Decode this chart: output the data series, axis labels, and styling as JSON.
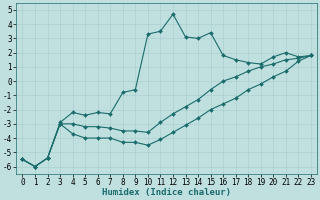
{
  "xlabel": "Humidex (Indice chaleur)",
  "bg_color": "#c0e0e0",
  "line_color": "#1a6b6b",
  "grid_color": "#a8cccc",
  "xlim": [
    -0.5,
    23.5
  ],
  "ylim": [
    -6.5,
    5.5
  ],
  "xticks": [
    0,
    1,
    2,
    3,
    4,
    5,
    6,
    7,
    8,
    9,
    10,
    11,
    12,
    13,
    14,
    15,
    16,
    17,
    18,
    19,
    20,
    21,
    22,
    23
  ],
  "yticks": [
    -6,
    -5,
    -4,
    -3,
    -2,
    -1,
    0,
    1,
    2,
    3,
    4,
    5
  ],
  "line1_x": [
    0,
    1,
    2,
    3,
    4,
    5,
    6,
    7,
    8,
    9,
    10,
    11,
    12,
    13,
    14,
    15,
    16,
    17,
    18,
    19,
    20,
    21,
    22,
    23
  ],
  "line1_y": [
    -5.5,
    -6.0,
    -5.4,
    -2.9,
    -2.2,
    -2.4,
    -2.2,
    -2.3,
    -0.8,
    -0.6,
    3.3,
    3.5,
    4.7,
    3.1,
    3.0,
    3.4,
    1.8,
    1.5,
    1.3,
    1.2,
    1.7,
    2.0,
    1.7,
    1.8
  ],
  "line2_x": [
    0,
    1,
    2,
    3,
    4,
    5,
    6,
    7,
    8,
    9,
    10,
    11,
    12,
    13,
    14,
    15,
    16,
    17,
    18,
    19,
    20,
    21,
    22,
    23
  ],
  "line2_y": [
    -5.5,
    -6.0,
    -5.4,
    -3.0,
    -3.0,
    -3.2,
    -3.2,
    -3.3,
    -3.5,
    -3.5,
    -3.6,
    -2.9,
    -2.3,
    -1.8,
    -1.3,
    -0.6,
    0.0,
    0.3,
    0.7,
    1.0,
    1.2,
    1.5,
    1.6,
    1.8
  ],
  "line3_x": [
    0,
    1,
    2,
    3,
    4,
    5,
    6,
    7,
    8,
    9,
    10,
    11,
    12,
    13,
    14,
    15,
    16,
    17,
    18,
    19,
    20,
    21,
    22,
    23
  ],
  "line3_y": [
    -5.5,
    -6.0,
    -5.4,
    -3.0,
    -3.7,
    -4.0,
    -4.0,
    -4.0,
    -4.3,
    -4.3,
    -4.5,
    -4.1,
    -3.6,
    -3.1,
    -2.6,
    -2.0,
    -1.6,
    -1.2,
    -0.6,
    -0.2,
    0.3,
    0.7,
    1.4,
    1.8
  ],
  "marker": "D",
  "markersize": 2,
  "linewidth": 0.8,
  "xlabel_fontsize": 6.5,
  "tick_fontsize": 5.5
}
